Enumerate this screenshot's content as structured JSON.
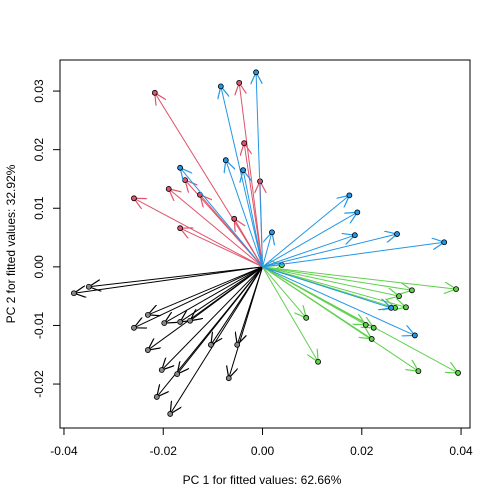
{
  "chart_data": {
    "type": "arrow-scatter",
    "xlabel": "PC 1 for fitted values: 62.66%",
    "ylabel": "PC 2 for fitted values: 32.92%",
    "xlim": [
      -0.0408,
      0.0418
    ],
    "ylim": [
      -0.0275,
      0.0353
    ],
    "xticks": [
      -0.04,
      -0.02,
      {
        "value": 0,
        "label": "0.00"
      },
      0.02,
      0.04
    ],
    "yticks": [
      -0.02,
      -0.01,
      {
        "value": 0,
        "label": "0.00"
      },
      0.01,
      0.02,
      0.03
    ],
    "series": [
      {
        "color": "#000000",
        "x": [
          -0.038,
          -0.035,
          -0.0259,
          -0.0231,
          -0.0198,
          -0.0166,
          -0.0231,
          -0.0203,
          -0.0172,
          -0.0146,
          -0.0104,
          -0.0051,
          -0.0213,
          -0.0186,
          -0.0068
        ],
        "y": [
          -0.0045,
          -0.0034,
          -0.0104,
          -0.0082,
          -0.0096,
          -0.0094,
          -0.0142,
          -0.0176,
          -0.0183,
          -0.0092,
          -0.0133,
          -0.0133,
          -0.0222,
          -0.0251,
          -0.019
        ]
      },
      {
        "color": "#DF536B",
        "x": [
          -0.0217,
          -0.0047,
          -0.0037,
          -0.0259,
          -0.0189,
          -0.0156,
          -0.0126,
          -0.0166,
          -0.0057,
          -0.0005
        ],
        "y": [
          0.0297,
          0.0314,
          0.0211,
          0.0117,
          0.0133,
          0.0148,
          0.0123,
          0.0066,
          0.0082,
          0.0146
        ]
      },
      {
        "color": "#61D04F",
        "x": [
          0.039,
          0.0301,
          0.0275,
          0.0267,
          0.0289,
          0.0208,
          0.0224,
          0.022,
          0.0088,
          0.0112,
          0.0314,
          0.0394,
          0.0039
        ],
        "y": [
          -0.0038,
          -0.004,
          -0.005,
          -0.007,
          -0.0069,
          -0.0099,
          -0.0104,
          -0.0123,
          -0.0087,
          -0.0162,
          -0.0178,
          -0.0181,
          0.0003
        ]
      },
      {
        "color": "#2297E6",
        "x": [
          -0.0013,
          -0.0084,
          -0.0074,
          -0.0166,
          -0.0039,
          0.0175,
          0.0191,
          0.0186,
          0.0271,
          0.0366,
          0.0019,
          0.0307,
          0.0259
        ],
        "y": [
          0.0332,
          0.0308,
          0.0182,
          0.0169,
          0.0165,
          0.0122,
          0.0093,
          0.0054,
          0.0056,
          0.0042,
          0.0059,
          -0.0117,
          -0.007
        ]
      }
    ]
  }
}
